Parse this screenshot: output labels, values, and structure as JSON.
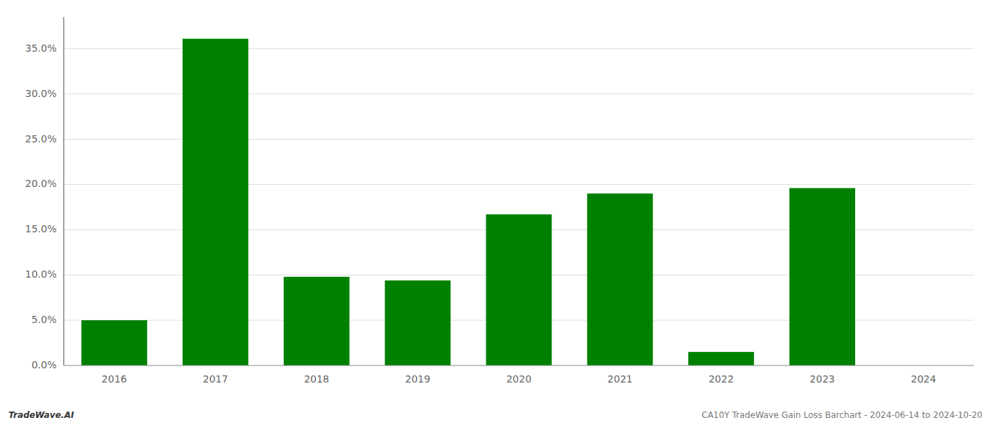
{
  "chart_data": {
    "type": "bar",
    "categories": [
      "2016",
      "2017",
      "2018",
      "2019",
      "2020",
      "2021",
      "2022",
      "2023",
      "2024"
    ],
    "values": [
      0.05,
      0.361,
      0.098,
      0.094,
      0.167,
      0.19,
      0.015,
      0.196,
      0.0
    ],
    "color": "#008000",
    "ylim": [
      0,
      0.385
    ],
    "yticks": [
      {
        "value": 0.0,
        "label": "0.0%"
      },
      {
        "value": 0.05,
        "label": "5.0%"
      },
      {
        "value": 0.1,
        "label": "10.0%"
      },
      {
        "value": 0.15,
        "label": "15.0%"
      },
      {
        "value": 0.2,
        "label": "20.0%"
      },
      {
        "value": 0.25,
        "label": "25.0%"
      },
      {
        "value": 0.3,
        "label": "30.0%"
      },
      {
        "value": 0.35,
        "label": "35.0%"
      }
    ],
    "grid": true,
    "annotations": [
      "TradeWave.AI",
      "CA10Y TradeWave Gain Loss Barchart - 2024-06-14 to 2024-10-20"
    ]
  }
}
